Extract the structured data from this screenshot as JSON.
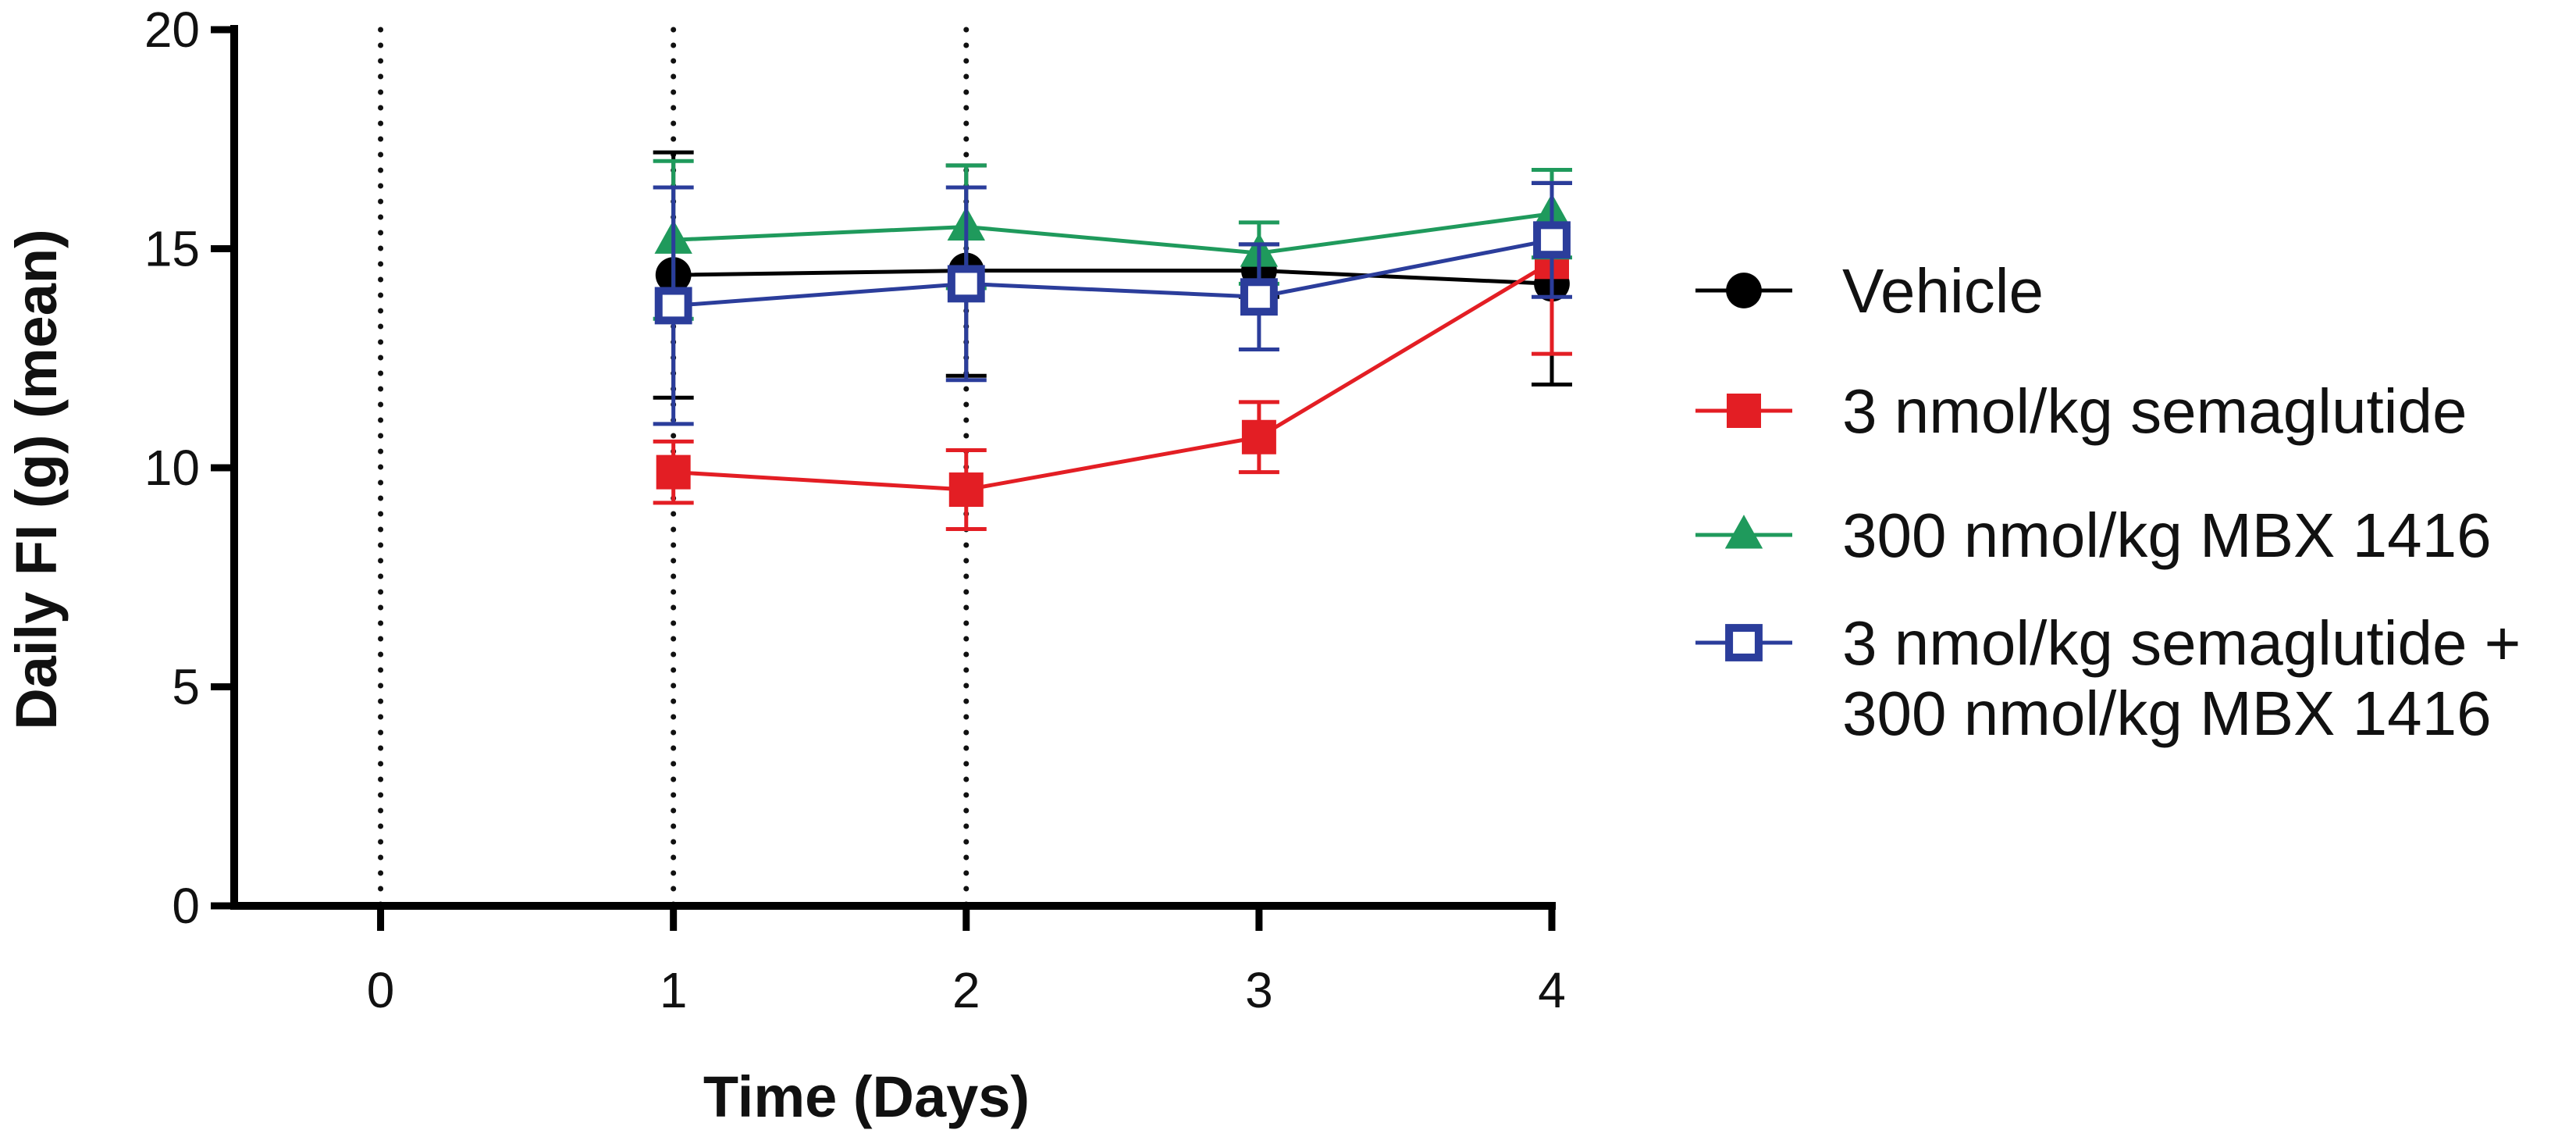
{
  "chart_data": {
    "type": "line",
    "title": "",
    "xlabel": "Time (Days)",
    "ylabel": "Daily FI (g) (mean)",
    "xlim": [
      -0.5,
      4
    ],
    "ylim": [
      0,
      20
    ],
    "x_ticks": [
      0,
      1,
      2,
      3,
      4
    ],
    "y_ticks": [
      0,
      5,
      10,
      15,
      20
    ],
    "dosing_days": [
      0,
      1,
      2
    ],
    "x": [
      1,
      2,
      3,
      4
    ],
    "series": [
      {
        "name": "Vehicle",
        "color": "#000000",
        "marker": "circle",
        "values": [
          14.4,
          14.5,
          14.5,
          14.2
        ],
        "error": [
          2.8,
          2.4,
          0.6,
          2.3
        ]
      },
      {
        "name": "3 nmol/kg semaglutide",
        "color": "#e31e24",
        "marker": "square",
        "values": [
          9.9,
          9.5,
          10.7,
          14.7
        ],
        "error": [
          0.7,
          0.9,
          0.8,
          2.1
        ]
      },
      {
        "name": "300 nmol/kg  MBX 1416",
        "color": "#1f9a5c",
        "marker": "triangle",
        "values": [
          15.2,
          15.5,
          14.9,
          15.8
        ],
        "error": [
          1.8,
          1.4,
          0.7,
          1.0
        ]
      },
      {
        "name": "3 nmol/kg semaglutide +",
        "name_line2": "300 nmol/kg MBX 1416",
        "color": "#2b3d9b",
        "marker": "open-square",
        "values": [
          13.7,
          14.2,
          13.9,
          15.2
        ],
        "error": [
          2.7,
          2.2,
          1.2,
          1.3
        ]
      }
    ]
  }
}
